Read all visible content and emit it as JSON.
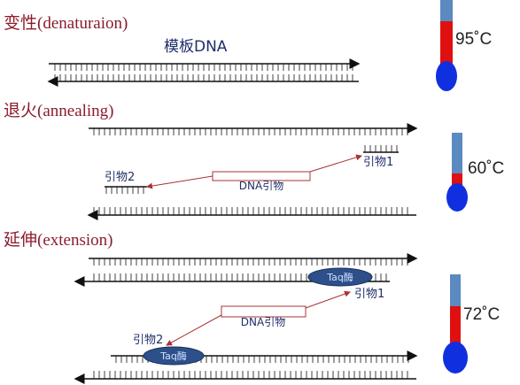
{
  "steps": [
    {
      "title": "变性(denaturaion)",
      "template_label": "模板DNA",
      "temperature": "95˚C"
    },
    {
      "title": "退火(annealing)",
      "primer2_label": "引物2",
      "box_label": "DNA引物",
      "primer1_label": "引物1",
      "temperature": "60˚C"
    },
    {
      "title": "延伸(extension)",
      "enzyme_top": "Taq酶",
      "primer1_label": "引物1",
      "box_label": "DNA引物",
      "primer2_label": "引物2",
      "enzyme_bottom": "Taq酶",
      "temperature": "72˚C"
    }
  ]
}
